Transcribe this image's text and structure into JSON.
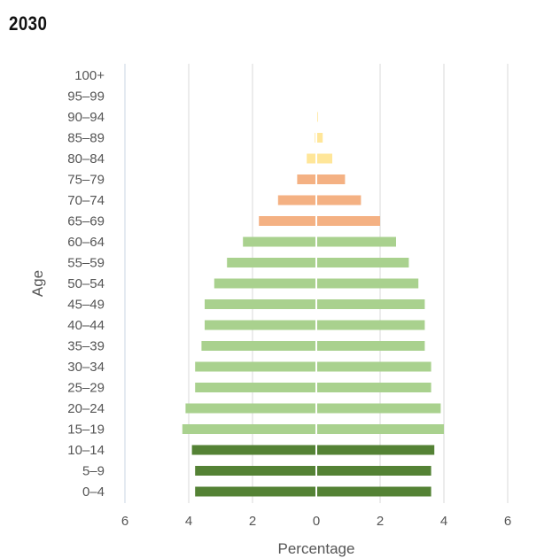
{
  "chart_data": {
    "type": "bar",
    "orientation": "horizontal-diverging",
    "title": "2030",
    "xlabel": "Percentage",
    "ylabel": "Age",
    "xlim": [
      -6,
      6
    ],
    "x_ticks": [
      -6,
      -4,
      -2,
      0,
      2,
      4,
      6
    ],
    "x_tick_labels": [
      "6",
      "4",
      "2",
      "0",
      "2",
      "4",
      "6"
    ],
    "grid": "vertical",
    "categories": [
      "0–4",
      "5–9",
      "10–14",
      "15–19",
      "20–24",
      "25–29",
      "30–34",
      "35–39",
      "40–44",
      "45–49",
      "50–54",
      "55–59",
      "60–64",
      "65–69",
      "70–74",
      "75–79",
      "80–84",
      "85–89",
      "90–94",
      "95–99",
      "100+"
    ],
    "series": [
      {
        "side": "left",
        "values": [
          3.8,
          3.8,
          3.9,
          4.2,
          4.1,
          3.8,
          3.8,
          3.6,
          3.5,
          3.5,
          3.2,
          2.8,
          2.3,
          1.8,
          1.2,
          0.6,
          0.3,
          0.05,
          0.02,
          0,
          0
        ]
      },
      {
        "side": "right",
        "values": [
          3.6,
          3.6,
          3.7,
          4.0,
          3.9,
          3.6,
          3.6,
          3.4,
          3.4,
          3.4,
          3.2,
          2.9,
          2.5,
          2.0,
          1.4,
          0.9,
          0.5,
          0.2,
          0.05,
          0,
          0
        ]
      }
    ],
    "colors": {
      "group_0_14": "#548235",
      "group_15_64": "#a9d18e",
      "group_65_79": "#f4b183",
      "group_80_plus": "#ffe699",
      "grid": "#d9d9d9",
      "zero_line": "#ffffff",
      "left_axis_line": "#c9d6e3"
    },
    "age_group_index_ranges": {
      "group_0_14": [
        0,
        2
      ],
      "group_15_64": [
        3,
        12
      ],
      "group_65_79": [
        13,
        15
      ],
      "group_80_plus": [
        16,
        20
      ]
    }
  }
}
